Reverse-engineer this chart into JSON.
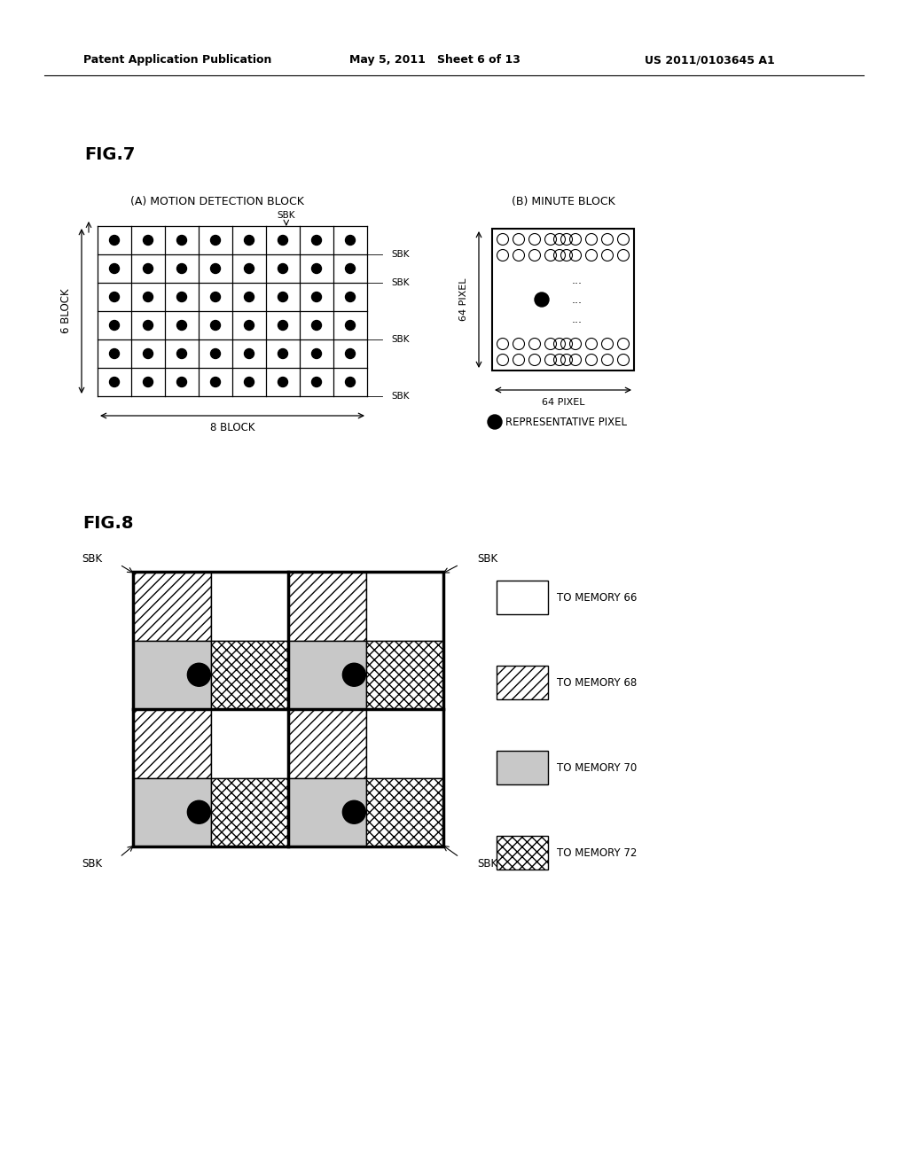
{
  "bg_color": "#ffffff",
  "header_left": "Patent Application Publication",
  "header_mid": "May 5, 2011   Sheet 6 of 13",
  "header_right": "US 2011/0103645 A1",
  "fig7_label": "FIG.7",
  "fig7A_title": "(A) MOTION DETECTION BLOCK",
  "fig7B_title": "(B) MINUTE BLOCK",
  "fig7A_xlabel": "8 BLOCK",
  "fig7A_ylabel": "6 BLOCK",
  "fig7A_sbk_top": "SBK",
  "fig7A_sbk_rights": [
    "SBK",
    "SBK",
    "SBK",
    "SBK"
  ],
  "fig7B_xlabel": "64 PIXEL",
  "fig7B_ylabel": "64 PIXEL",
  "fig7B_rep_pixel": "REPRESENTATIVE PIXEL",
  "fig8_label": "FIG.8",
  "fig8_sbk_labels": [
    "SBK",
    "SBK",
    "SBK",
    "SBK"
  ],
  "fig8_legend": [
    "TO MEMORY 66",
    "TO MEMORY 68",
    "TO MEMORY 70",
    "TO MEMORY 72"
  ],
  "grid_rows": 6,
  "grid_cols": 8
}
